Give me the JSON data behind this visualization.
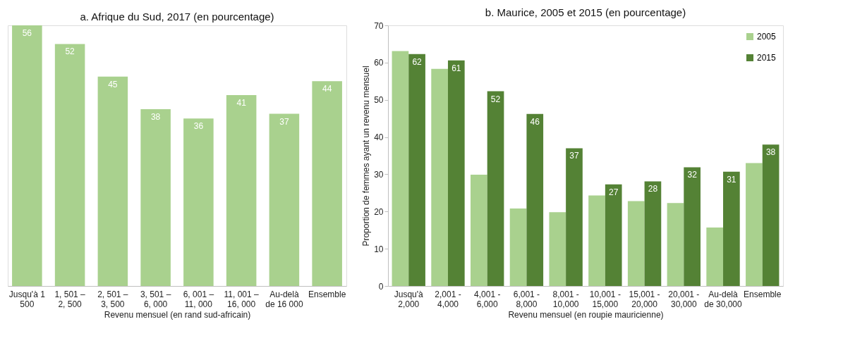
{
  "chart_data": [
    {
      "type": "bar",
      "title": "a. Afrique du Sud, 2017 (en pourcentage)",
      "xlabel": "Revenu mensuel (en rand sud-africain)",
      "categories": [
        "Jusqu'à 1 500",
        "1, 501 – 2, 500",
        "2, 501 – 3, 500",
        "3, 501 – 6, 000",
        "6, 001 – 11, 000",
        "11, 001 – 16, 000",
        "Au-delà de 16 000",
        "Ensemble"
      ],
      "values": [
        56,
        52,
        45,
        38,
        36,
        41,
        37,
        44
      ],
      "color": "#a9d18e",
      "data_labels": true,
      "tick_labels": "x",
      "grid": false
    },
    {
      "type": "bar",
      "title": "b. Maurice, 2005 et 2015 (en pourcentage)",
      "xlabel": "Revenu mensuel (en roupie mauricienne)",
      "ylabel": "Proportion de femmes ayant un revenu mensuel",
      "categories": [
        "Jusqu'à 2,000",
        "2,001 - 4,000",
        "4,001 - 6,000",
        "6,001 - 8,000",
        "8,001 - 10,000",
        "10,001 - 15,000",
        "15,001 - 20,000",
        "20,001 - 30,000",
        "Au-delà de 30,000",
        "Ensemble"
      ],
      "ylim": [
        0,
        70
      ],
      "yticks": [
        0,
        10,
        20,
        30,
        40,
        50,
        60,
        70
      ],
      "grid": false,
      "legend": "top right",
      "series": [
        {
          "name": "2005",
          "color": "#a9d18e",
          "values": [
            63.1,
            58.3,
            29.9,
            20.8,
            19.8,
            24.3,
            22.8,
            22.3,
            15.7,
            33.0
          ]
        },
        {
          "name": "2015",
          "color": "#548235",
          "values": [
            62.3,
            60.6,
            52.3,
            46.2,
            37.0,
            27.3,
            28.1,
            31.9,
            30.7,
            38.0
          ],
          "value_labels": [
            "62",
            "61",
            "52",
            "46",
            "37",
            "27",
            "28",
            "32",
            "31",
            "38"
          ]
        }
      ]
    }
  ]
}
